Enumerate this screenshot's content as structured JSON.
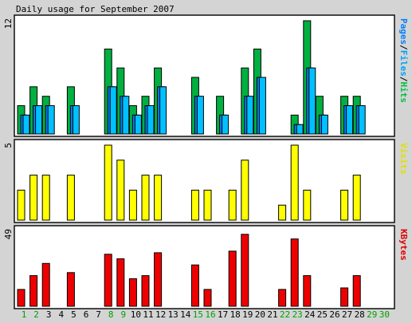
{
  "chart_data": {
    "title": "Daily usage for September 2007",
    "days": [
      "1",
      "2",
      "3",
      "4",
      "5",
      "6",
      "7",
      "8",
      "9",
      "10",
      "11",
      "12",
      "13",
      "14",
      "15",
      "16",
      "17",
      "18",
      "19",
      "20",
      "21",
      "22",
      "23",
      "24",
      "25",
      "26",
      "27",
      "28",
      "29",
      "30"
    ],
    "weekend_days": [
      "1",
      "2",
      "8",
      "9",
      "15",
      "16",
      "22",
      "23",
      "29",
      "30"
    ],
    "panels": [
      {
        "key": "hits",
        "type": "bar",
        "ymax_label": "12",
        "ylim": [
          0,
          12
        ],
        "side_label": [
          "Pages",
          "/",
          "Files",
          "/",
          "Hits"
        ],
        "side_label_colors": [
          "#0080ff",
          "#000000",
          "#00a0ff",
          "#000000",
          "#00c040"
        ],
        "series": [
          {
            "name": "Hits",
            "color": "#00b040",
            "values": [
              3,
              5,
              4,
              0,
              5,
              0,
              0,
              9,
              7,
              3,
              4,
              7,
              0,
              0,
              6,
              0,
              4,
              0,
              7,
              9,
              0,
              0,
              2,
              12,
              4,
              0,
              4,
              4,
              0,
              0
            ]
          },
          {
            "name": "Files",
            "color": "#0080ff",
            "values": [
              2,
              3,
              3,
              0,
              3,
              0,
              0,
              5,
              4,
              2,
              3,
              5,
              0,
              0,
              4,
              0,
              2,
              0,
              4,
              6,
              0,
              0,
              1,
              7,
              2,
              0,
              3,
              3,
              0,
              0
            ]
          },
          {
            "name": "Pages",
            "color": "#00c0ff",
            "values": [
              2,
              3,
              3,
              0,
              3,
              0,
              0,
              5,
              4,
              2,
              3,
              5,
              0,
              0,
              4,
              0,
              2,
              0,
              4,
              6,
              0,
              0,
              1,
              7,
              2,
              0,
              3,
              3,
              0,
              0
            ]
          }
        ]
      },
      {
        "key": "visits",
        "type": "bar",
        "ymax_label": "5",
        "ylim": [
          0,
          5
        ],
        "side_label": [
          "Visits"
        ],
        "side_label_colors": [
          "#e0e000"
        ],
        "series": [
          {
            "name": "Visits",
            "color": "#ffff00",
            "values": [
              2,
              3,
              3,
              0,
              3,
              0,
              0,
              5,
              4,
              2,
              3,
              3,
              0,
              0,
              2,
              2,
              0,
              2,
              4,
              0,
              0,
              1,
              5,
              2,
              0,
              0,
              2,
              3,
              0,
              0
            ]
          }
        ]
      },
      {
        "key": "kbytes",
        "type": "bar",
        "ymax_label": "49",
        "ylim": [
          0,
          49
        ],
        "side_label": [
          "KBytes"
        ],
        "side_label_colors": [
          "#e00000"
        ],
        "series": [
          {
            "name": "KBytes",
            "color": "#ee0000",
            "values": [
              11,
              20,
              28,
              0,
              22,
              0,
              0,
              34,
              31,
              18,
              20,
              35,
              0,
              0,
              27,
              11,
              0,
              36,
              47,
              0,
              0,
              11,
              44,
              20,
              0,
              0,
              12,
              20,
              0,
              0
            ]
          }
        ]
      }
    ]
  }
}
